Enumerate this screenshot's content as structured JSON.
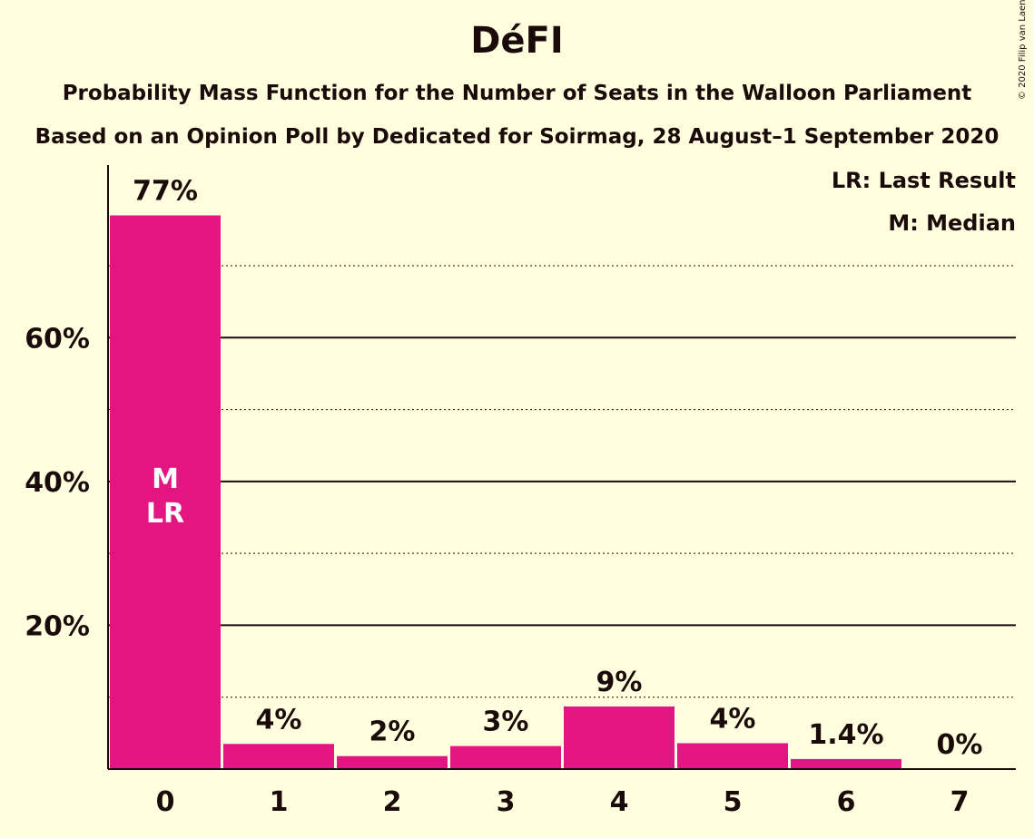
{
  "header": {
    "title": "DéFI",
    "subtitle1": "Probability Mass Function for the Number of Seats in the Walloon Parliament",
    "subtitle2": "Based on an Opinion Poll by Dedicated for Soirmag, 28 August–1 September 2020",
    "copyright": "© 2020 Filip van Laenen"
  },
  "legend": {
    "last_result": "LR: Last Result",
    "median": "M: Median"
  },
  "colors": {
    "bar": "#e31583",
    "background": "#ffffe0",
    "text": "#1a0a0a"
  },
  "chart_data": {
    "type": "bar",
    "categories": [
      "0",
      "1",
      "2",
      "3",
      "4",
      "5",
      "6",
      "7"
    ],
    "values": [
      77,
      3.5,
      1.8,
      3.2,
      8.7,
      3.6,
      1.4,
      0
    ],
    "data_labels": [
      "77%",
      "4%",
      "2%",
      "3%",
      "9%",
      "4%",
      "1.4%",
      "0%"
    ],
    "ylim": [
      0,
      84
    ],
    "yticks": [
      20,
      40,
      60
    ],
    "ytick_labels": [
      "20%",
      "40%",
      "60%"
    ],
    "minor_gridlines": [
      10,
      30,
      50,
      70
    ],
    "median_index": 0,
    "last_result_index": 0,
    "in_bar_labels": [
      "M",
      "LR"
    ]
  }
}
